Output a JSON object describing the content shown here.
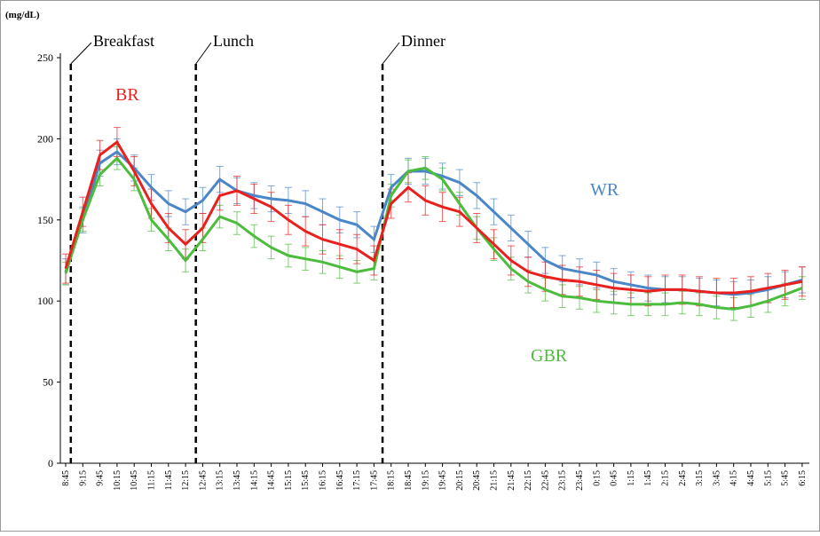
{
  "chart_data": {
    "type": "line",
    "y_unit": "(mg/dL)",
    "categories": [
      "8:45",
      "9:15",
      "9:45",
      "10:15",
      "10:45",
      "11:15",
      "11:45",
      "12:15",
      "12:45",
      "13:15",
      "13:45",
      "14:15",
      "14:45",
      "15:15",
      "15:45",
      "16:15",
      "16:45",
      "17:15",
      "17:45",
      "18:15",
      "18:45",
      "19:15",
      "19:45",
      "20:15",
      "20:45",
      "21:15",
      "21:45",
      "22:15",
      "22:45",
      "23:15",
      "23:45",
      "0:15",
      "0:45",
      "1:15",
      "1:45",
      "2:15",
      "2:45",
      "3:15",
      "3:45",
      "4:15",
      "4:45",
      "5:15",
      "5:45",
      "6:15"
    ],
    "series": [
      {
        "name": "WR",
        "color": "#4a86c8",
        "error": 8,
        "values": [
          118,
          150,
          185,
          192,
          182,
          170,
          160,
          155,
          162,
          175,
          168,
          165,
          163,
          162,
          160,
          155,
          150,
          147,
          138,
          170,
          180,
          180,
          177,
          173,
          165,
          155,
          145,
          135,
          125,
          120,
          118,
          116,
          112,
          110,
          108,
          107,
          107,
          106,
          105,
          104,
          105,
          107,
          110,
          113
        ]
      },
      {
        "name": "BR",
        "color": "#e8201e",
        "error": 9,
        "values": [
          120,
          155,
          190,
          198,
          180,
          160,
          145,
          135,
          145,
          165,
          168,
          163,
          158,
          150,
          143,
          138,
          135,
          132,
          125,
          160,
          170,
          162,
          158,
          155,
          145,
          135,
          125,
          118,
          115,
          113,
          112,
          110,
          108,
          107,
          106,
          107,
          107,
          106,
          105,
          105,
          106,
          108,
          110,
          112
        ]
      },
      {
        "name": "GBR",
        "color": "#4cbc3c",
        "error": 7,
        "values": [
          117,
          150,
          178,
          188,
          175,
          150,
          138,
          125,
          138,
          152,
          148,
          140,
          133,
          128,
          126,
          124,
          121,
          118,
          120,
          165,
          180,
          182,
          175,
          160,
          145,
          132,
          120,
          112,
          107,
          103,
          102,
          100,
          99,
          98,
          98,
          98,
          99,
          98,
          96,
          95,
          97,
          100,
          104,
          108
        ]
      }
    ],
    "events": [
      "Breakfast",
      "Lunch",
      "Dinner"
    ],
    "ylim": [
      0,
      250
    ],
    "yticks": [
      0,
      50,
      100,
      150,
      200,
      250
    ],
    "grid": false
  }
}
